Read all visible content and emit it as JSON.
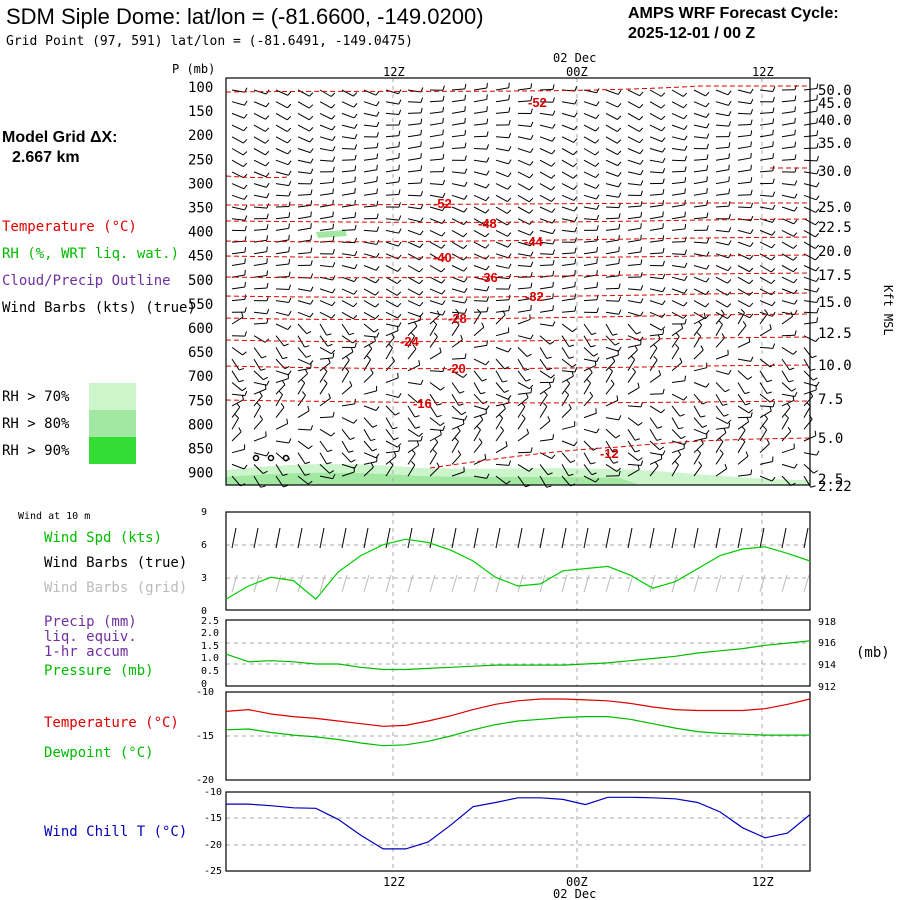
{
  "header": {
    "title": "SDM Siple Dome:  lat/lon = (-81.6600, -149.0200)",
    "subtitle": "Grid Point (97, 591) lat/lon = (-81.6491, -149.0475)",
    "forecast_label": "AMPS WRF Forecast Cycle:",
    "forecast_cycle": "2025-12-01 / 00  Z"
  },
  "model": {
    "label": "Model Grid ΔX:",
    "value": "2.667 km"
  },
  "legend": {
    "temperature": "Temperature (°C)",
    "rh": "RH (%, WRT liq. wat.)",
    "cloud": "Cloud/Precip Outline",
    "wind": "Wind Barbs (kts) (true)",
    "rh70": "RH > 70%",
    "rh80": "RH > 80%",
    "rh90": "RH > 90%"
  },
  "time_axis": {
    "date_label": "02 Dec",
    "ticks": [
      "12Z",
      "00Z",
      "12Z"
    ]
  },
  "colors": {
    "temperature": "#dd0000",
    "rh70": "#ccf5cc",
    "rh80": "#a2e8a2",
    "rh90": "#33dd33",
    "wind_speed": "#00cc00",
    "grid_barb": "#aaaaaa",
    "precip": "#7030a0",
    "wind_chill": "#0000bb"
  },
  "chart_data": [
    {
      "type": "line",
      "name": "time-height cross section",
      "ylabel": "P (mb)",
      "y_ticks": [
        "100",
        "150",
        "200",
        "250",
        "300",
        "350",
        "400",
        "450",
        "500",
        "550",
        "600",
        "650",
        "700",
        "750",
        "800",
        "850",
        "900"
      ],
      "right_axis_label": "Kft MSL",
      "right_ticks": [
        "50.0",
        "45.0",
        "40.0",
        "35.0",
        "30.0",
        "25.0",
        "22.5",
        "20.0",
        "17.5",
        "15.0",
        "12.5",
        "10.0",
        "7.5",
        "5.0",
        "2.5",
        "2.22"
      ],
      "isotherm_labels": [
        "-52",
        "-52",
        "-48",
        "-44",
        "-40",
        "-36",
        "-32",
        "-28",
        "-24",
        "-20",
        "-16",
        "-12"
      ],
      "isotherms_c": [
        -52,
        -52,
        -48,
        -44,
        -40,
        -36,
        -32,
        -28,
        -24,
        -20,
        -16,
        -12
      ],
      "cloud_markers": 3
    },
    {
      "type": "line",
      "name": "wind at 10 m",
      "label": "Wind at 10 m",
      "ylim": [
        0,
        9
      ],
      "y_ticks": [
        "9",
        "6",
        "3",
        "0"
      ],
      "legend": [
        "Wind Spd (kts)",
        "Wind Barbs (true)",
        "Wind Barbs (grid)"
      ],
      "series": [
        {
          "name": "Wind Spd (kts)",
          "values": [
            1,
            2.2,
            3,
            2.7,
            1,
            3.5,
            5,
            6,
            6.5,
            6.2,
            5.5,
            4.5,
            3,
            2.2,
            2.4,
            3.6,
            3.8,
            4,
            3.2,
            2,
            2.6,
            3.8,
            5,
            5.6,
            5.8,
            5.2,
            4.5
          ]
        }
      ]
    },
    {
      "type": "line",
      "name": "precip and pressure",
      "legend": [
        "Precip (mm)",
        "liq. equiv.",
        "1-hr accum",
        "Pressure (mb)"
      ],
      "left_ylim": [
        0,
        2.5
      ],
      "left_ticks": [
        "2.5",
        "2.0",
        "1.5",
        "1.0",
        "0.5",
        "0"
      ],
      "right_ylim": [
        912,
        918
      ],
      "right_ticks": [
        "918",
        "916",
        "914",
        "912"
      ],
      "right_unit": "(mb)",
      "series": [
        {
          "name": "Pressure (mb)",
          "values": [
            914.9,
            914.2,
            914.3,
            914.2,
            914.0,
            914.0,
            913.7,
            913.5,
            913.5,
            913.6,
            913.7,
            913.8,
            913.9,
            913.9,
            913.9,
            913.9,
            914.0,
            914.1,
            914.3,
            914.5,
            914.7,
            915.0,
            915.2,
            915.4,
            915.7,
            915.9,
            916.1
          ]
        }
      ]
    },
    {
      "type": "line",
      "name": "temperature and dewpoint",
      "legend": [
        "Temperature (°C)",
        "Dewpoint (°C)"
      ],
      "ylim": [
        -20,
        -10
      ],
      "y_ticks": [
        "-10",
        "-15",
        "-20"
      ],
      "series": [
        {
          "name": "Temperature (°C)",
          "values": [
            -12.2,
            -12.0,
            -12.5,
            -12.8,
            -13.0,
            -13.3,
            -13.6,
            -13.9,
            -13.8,
            -13.3,
            -12.7,
            -12.0,
            -11.4,
            -11.0,
            -10.8,
            -10.8,
            -10.9,
            -11.0,
            -11.3,
            -11.7,
            -12.0,
            -12.1,
            -12.1,
            -12.1,
            -11.9,
            -11.4,
            -10.8
          ]
        },
        {
          "name": "Dewpoint (°C)",
          "values": [
            -14.3,
            -14.2,
            -14.6,
            -14.9,
            -15.1,
            -15.4,
            -15.8,
            -16.1,
            -16.0,
            -15.6,
            -15.0,
            -14.3,
            -13.7,
            -13.3,
            -13.1,
            -12.9,
            -12.8,
            -12.8,
            -13.1,
            -13.6,
            -14.1,
            -14.5,
            -14.7,
            -14.8,
            -14.9,
            -14.9,
            -14.9
          ]
        }
      ]
    },
    {
      "type": "line",
      "name": "wind chill",
      "legend": [
        "Wind Chill T (°C)"
      ],
      "ylim": [
        -25,
        -10
      ],
      "y_ticks": [
        "-10",
        "-15",
        "-20",
        "-25"
      ],
      "series": [
        {
          "name": "Wind Chill T (°C)",
          "values": [
            -12.3,
            -12.3,
            -12.6,
            -13.0,
            -13.1,
            -15.2,
            -18.2,
            -20.8,
            -20.8,
            -19.5,
            -16.3,
            -12.8,
            -12.0,
            -11.1,
            -11.1,
            -11.4,
            -12.4,
            -11.0,
            -11.0,
            -11.1,
            -11.3,
            -12.0,
            -13.8,
            -16.8,
            -18.7,
            -17.8,
            -14.3
          ]
        }
      ]
    }
  ]
}
